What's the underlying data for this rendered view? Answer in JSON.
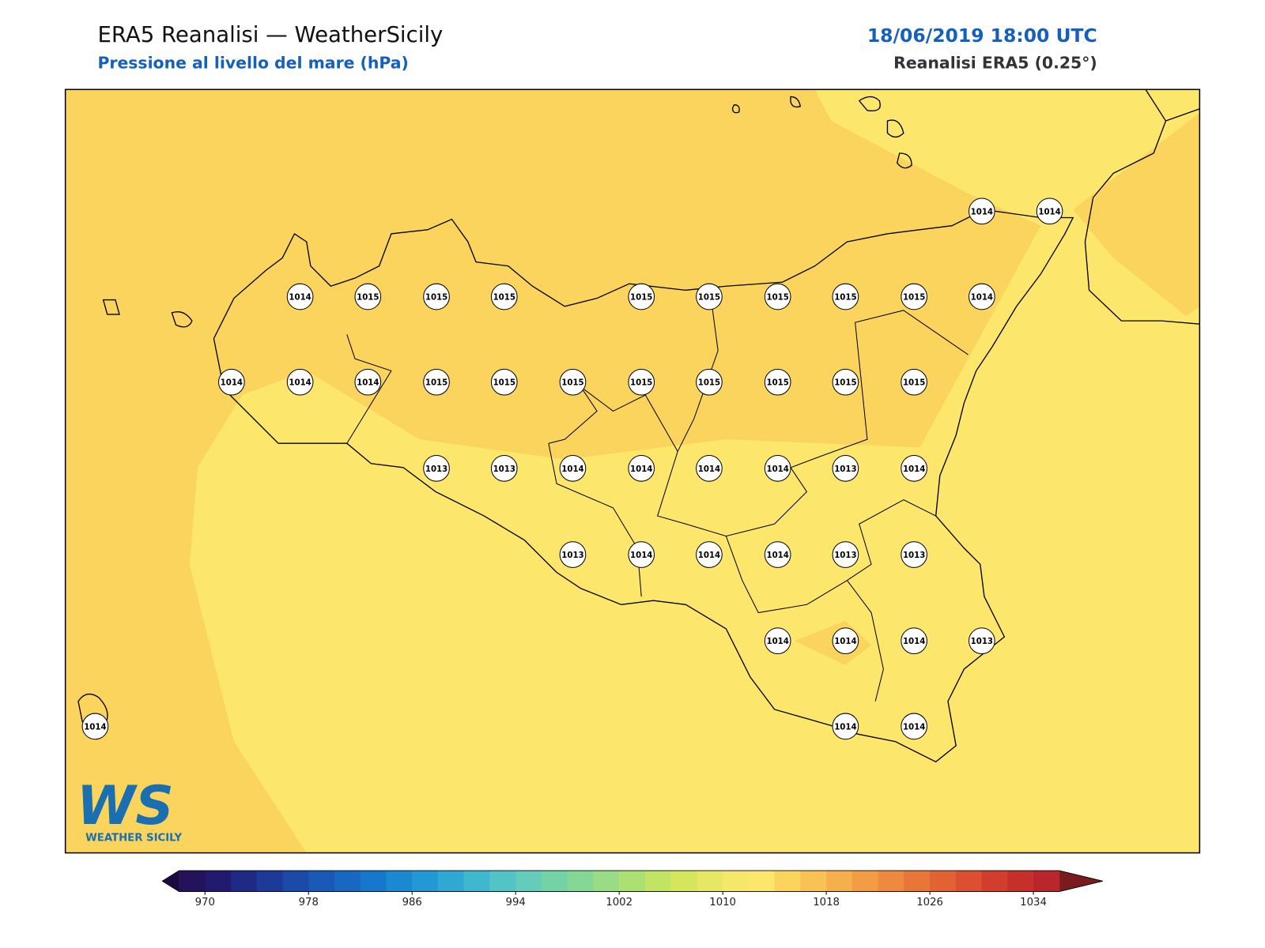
{
  "header": {
    "title": "ERA5 Reanalisi — WeatherSicily",
    "subtitle": "Pressione al livello del mare (hPa)",
    "datetime": "18/06/2019 18:00 UTC",
    "source": "Reanalisi ERA5 (0.25°)"
  },
  "stations": [
    1014,
    1014,
    1014,
    1015,
    1015,
    1015,
    1015,
    1015,
    1015,
    1015,
    1015,
    1014,
    1014,
    1014,
    1014,
    1015,
    1015,
    1015,
    1015,
    1015,
    1015,
    1015,
    1015,
    1013,
    1013,
    1014,
    1014,
    1014,
    1014,
    1013,
    1014,
    1013,
    1014,
    1014,
    1014,
    1013,
    1013,
    1014,
    1014,
    1014,
    1013,
    1014,
    1014,
    1014
  ],
  "colorbar": {
    "lim": [
      968,
      1036
    ],
    "ticks": [
      970,
      978,
      986,
      994,
      1002,
      1010,
      1018,
      1026,
      1034
    ],
    "colors": [
      "#24125a",
      "#211a6e",
      "#1f2a85",
      "#1d3a98",
      "#1b4aa8",
      "#1a59b5",
      "#1868c2",
      "#1678cc",
      "#1a89d2",
      "#2299d4",
      "#2fa9d3",
      "#3fb8cf",
      "#52c4c6",
      "#64ccb8",
      "#74d2a7",
      "#85d796",
      "#99dc85",
      "#ade073",
      "#c1e464",
      "#d5e65d",
      "#e6e765",
      "#f5e66c",
      "#fce66b",
      "#fad45c",
      "#f8c254",
      "#f5b04d",
      "#f29d46",
      "#ee8a3f",
      "#e97639",
      "#e36234",
      "#dc4f30",
      "#d33d2d",
      "#c72f2b",
      "#b9262b"
    ],
    "under_color": "#1b0a40",
    "over_color": "#7a1c1e"
  },
  "logo": {
    "mark": "WS",
    "text": "WEATHER SICILY"
  }
}
